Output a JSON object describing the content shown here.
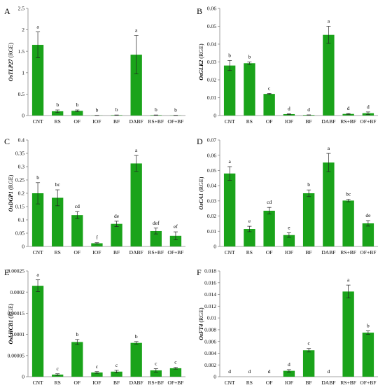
{
  "colors": {
    "bar": "#1aa31a",
    "axis": "#888888",
    "error": "#222222",
    "text": "#000000"
  },
  "chart_data": [
    {
      "type": "bar",
      "panel_label": "A",
      "ylabel_gene": "OsTLP27",
      "ylabel_unit": " (RGE)",
      "categories": [
        "CNT",
        "RS",
        "OF",
        "IOF",
        "BF",
        "DABF",
        "RS+BF",
        "OF+BF"
      ],
      "values": [
        1.65,
        0.1,
        0.11,
        0.003,
        0.01,
        1.42,
        0.01,
        0.004
      ],
      "errors": [
        0.3,
        0.03,
        0.02,
        0.002,
        0.004,
        0.45,
        0.004,
        0.002
      ],
      "letters": [
        "a",
        "b",
        "b",
        "b",
        "b",
        "a",
        "b",
        "b"
      ],
      "ylim": [
        0,
        2.5
      ],
      "yticks": [
        0,
        0.5,
        1,
        1.5,
        2,
        2.5
      ],
      "ytick_labels": [
        "0",
        "0.5",
        "1",
        "1.5",
        "2",
        "2.5"
      ]
    },
    {
      "type": "bar",
      "panel_label": "B",
      "ylabel_gene": "OsGLK2",
      "ylabel_unit": " (RGE)",
      "categories": [
        "CNT",
        "RS",
        "OF",
        "IOF",
        "BF",
        "DABF",
        "RS+BF",
        "OF+BF"
      ],
      "values": [
        0.028,
        0.0293,
        0.0121,
        0.0008,
        0.0003,
        0.0452,
        0.0009,
        0.0013
      ],
      "errors": [
        0.0028,
        0.0007,
        0.0003,
        0.0002,
        0.0001,
        0.0048,
        0.0002,
        0.0007
      ],
      "letters": [
        "b",
        "b",
        "c",
        "d",
        "d",
        "a",
        "d",
        "d"
      ],
      "ylim": [
        0,
        0.06
      ],
      "yticks": [
        0,
        0.01,
        0.02,
        0.03,
        0.04,
        0.05,
        0.06
      ],
      "ytick_labels": [
        "0",
        "0.01",
        "0.02",
        "0.03",
        "0.04",
        "0.05",
        "0.06"
      ]
    },
    {
      "type": "bar",
      "panel_label": "C",
      "ylabel_gene": "OsDGP1",
      "ylabel_unit": " (RGE)",
      "categories": [
        "CNT",
        "RS",
        "OF",
        "IOF",
        "BF",
        "DABF",
        "RS+BF",
        "OF+BF"
      ],
      "values": [
        0.2,
        0.183,
        0.118,
        0.012,
        0.085,
        0.312,
        0.058,
        0.04
      ],
      "errors": [
        0.04,
        0.03,
        0.013,
        0.002,
        0.01,
        0.03,
        0.011,
        0.015
      ],
      "letters": [
        "b",
        "bc",
        "cd",
        "f",
        "de",
        "a",
        "def",
        "ef"
      ],
      "ylim": [
        0,
        0.4
      ],
      "yticks": [
        0,
        0.05,
        0.1,
        0.15,
        0.2,
        0.25,
        0.3,
        0.35,
        0.4
      ],
      "ytick_labels": [
        "0",
        "0.05",
        "0.1",
        "0.15",
        "0.2",
        "0.25",
        "0.3",
        "0.35",
        "0.4"
      ]
    },
    {
      "type": "bar",
      "panel_label": "D",
      "ylabel_gene": "OsCA1",
      "ylabel_unit": " (RGE)",
      "categories": [
        "CNT",
        "RS",
        "OF",
        "IOF",
        "BF",
        "DABF",
        "RS+BF",
        "OF+BF"
      ],
      "values": [
        0.048,
        0.0115,
        0.0235,
        0.0075,
        0.035,
        0.0552,
        0.0302,
        0.0152
      ],
      "errors": [
        0.0045,
        0.0018,
        0.0022,
        0.0015,
        0.0022,
        0.006,
        0.0008,
        0.0018
      ],
      "letters": [
        "a",
        "e",
        "cd",
        "e",
        "b",
        "a",
        "bc",
        "de"
      ],
      "ylim": [
        0,
        0.07
      ],
      "yticks": [
        0,
        0.01,
        0.02,
        0.03,
        0.04,
        0.05,
        0.06,
        0.07
      ],
      "ytick_labels": [
        "0",
        "0.01",
        "0.02",
        "0.03",
        "0.04",
        "0.05",
        "0.06",
        "0.07"
      ]
    },
    {
      "type": "bar",
      "panel_label": "E",
      "ylabel_gene": "OsLHCB1",
      "ylabel_unit": " (RGE)",
      "categories": [
        "CNT",
        "RS",
        "OF",
        "IOF",
        "BF",
        "DABF",
        "RS+BF",
        "OF+BF"
      ],
      "values": [
        0.000215,
        5e-06,
        8.2e-05,
        1e-05,
        1.2e-05,
        8e-05,
        1.5e-05,
        2e-05
      ],
      "errors": [
        1.4e-05,
        2e-06,
        6e-06,
        2e-06,
        3e-06,
        3e-06,
        4e-06,
        2e-06
      ],
      "letters": [
        "a",
        "c",
        "b",
        "c",
        "c",
        "b",
        "c",
        "c"
      ],
      "ylim": [
        0,
        0.00025
      ],
      "yticks": [
        0,
        5e-05,
        0.0001,
        0.00015,
        0.0002,
        0.00025
      ],
      "ytick_labels": [
        "0",
        "0.00005",
        "0.0001",
        "0.00015",
        "0.0002",
        "0.00025"
      ]
    },
    {
      "type": "bar",
      "panel_label": "F",
      "ylabel_gene": "OsFT4",
      "ylabel_unit": " (RGE)",
      "categories": [
        "CNT",
        "RS",
        "OF",
        "IOF",
        "BF",
        "DABF",
        "RS+BF",
        "OF+BF"
      ],
      "values": [
        0,
        0,
        0,
        0.001,
        0.0045,
        0,
        0.0145,
        0.0075
      ],
      "errors": [
        0,
        0,
        0,
        0.0002,
        0.0003,
        0,
        0.0011,
        0.0003
      ],
      "letters": [
        "d",
        "d",
        "d",
        "d",
        "c",
        "d",
        "a",
        "b"
      ],
      "ylim": [
        0,
        0.018
      ],
      "yticks": [
        0,
        0.002,
        0.004,
        0.006,
        0.008,
        0.01,
        0.012,
        0.014,
        0.016,
        0.018
      ],
      "ytick_labels": [
        "0",
        "0.002",
        "0.004",
        "0.006",
        "0.008",
        "0.01",
        "0.012",
        "0.014",
        "0.016",
        "0.018"
      ]
    }
  ]
}
